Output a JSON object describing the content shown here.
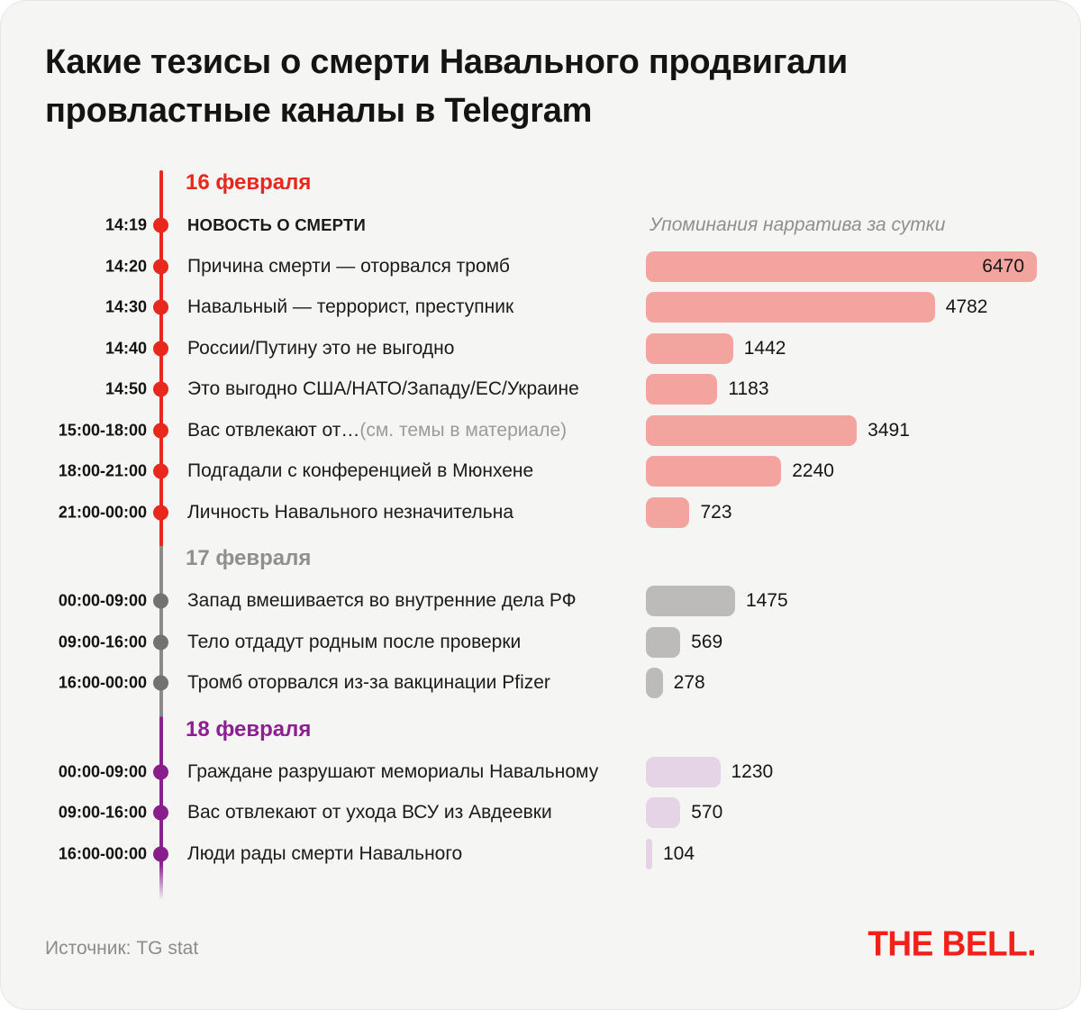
{
  "page": {
    "title": "Какие тезисы о смерти Навального продвигали провластные каналы в Telegram",
    "source": "Источник: TG stat",
    "logo": "THE BELL."
  },
  "chart_data": {
    "type": "bar",
    "orientation": "horizontal",
    "title": "Какие тезисы о смерти Навального продвигали провластные каналы в Telegram",
    "mentions_header": "Упоминания нарратива за сутки",
    "xlabel": "Упоминания нарратива за сутки",
    "x_range": [
      0,
      6470
    ],
    "max_value": 6470,
    "grid": false,
    "sections": [
      {
        "date": "16 февраля",
        "heading_color": "#E8281C",
        "dot_color": "#E8281C",
        "line_color": "#E8281C",
        "bar_color": "#F4A49F",
        "rows": [
          {
            "time": "14:19",
            "label": "НОВОСТЬ О СМЕРТИ",
            "emphasis": true,
            "value": null
          },
          {
            "time": "14:20",
            "label": "Причина смерти — оторвался тромб",
            "value": 6470
          },
          {
            "time": "14:30",
            "label": "Навальный — террорист, преступник",
            "value": 4782
          },
          {
            "time": "14:40",
            "label": "России/Путину это не выгодно",
            "value": 1442
          },
          {
            "time": "14:50",
            "label": "Это выгодно США/НАТО/Западу/ЕС/Украине",
            "value": 1183
          },
          {
            "time": "15:00-18:00",
            "label": "Вас отвлекают от…",
            "note": "(см. темы в материале)",
            "value": 3491
          },
          {
            "time": "18:00-21:00",
            "label": "Подгадали с конференцией в Мюнхене",
            "value": 2240
          },
          {
            "time": "21:00-00:00",
            "label": "Личность Навального незначительна",
            "value": 723
          }
        ]
      },
      {
        "date": "17 февраля",
        "heading_color": "#8F8F8D",
        "dot_color": "#72726F",
        "line_color": "#8A8A88",
        "bar_color": "#BCBBB9",
        "rows": [
          {
            "time": "00:00-09:00",
            "label": "Запад вмешивается во внутренние дела РФ",
            "value": 1475
          },
          {
            "time": "09:00-16:00",
            "label": "Тело отдадут родным после проверки",
            "value": 569
          },
          {
            "time": "16:00-00:00",
            "label": "Тромб оторвался из-за вакцинации Pfizer",
            "value": 278
          }
        ]
      },
      {
        "date": "18 февраля",
        "heading_color": "#8D2090",
        "dot_color": "#871E8B",
        "line_color": "#8D2090",
        "bar_color": "#E5D4E6",
        "rows": [
          {
            "time": "00:00-09:00",
            "label": "Граждане разрушают мемориалы Навальному",
            "value": 1230
          },
          {
            "time": "09:00-16:00",
            "label": "Вас отвлекают от ухода ВСУ из Авдеевки",
            "value": 570
          },
          {
            "time": "16:00-00:00",
            "label": "Люди рады смерти Навального",
            "value": 104
          }
        ]
      }
    ]
  }
}
